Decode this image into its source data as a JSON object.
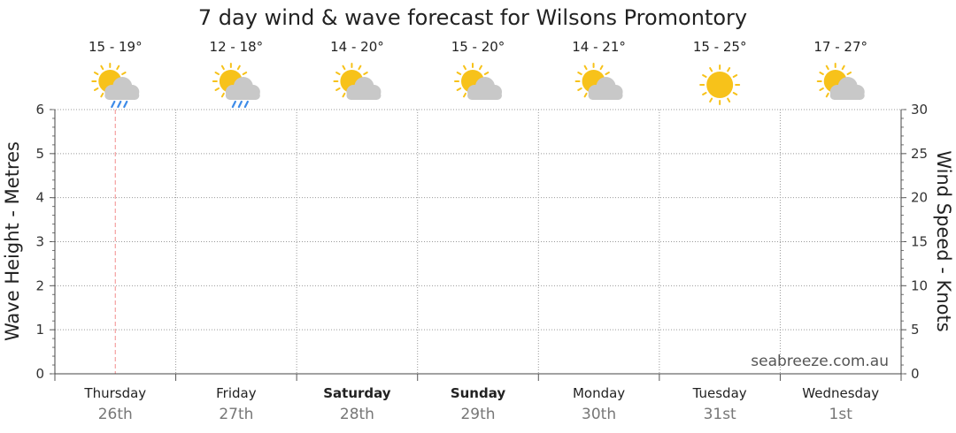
{
  "chart_data": {
    "type": "line",
    "title": "7 day wind & wave forecast for Wilsons Promontory",
    "left_axis": {
      "label": "Wave Height - Metres",
      "range": [
        0,
        6
      ],
      "ticks": [
        "0",
        "1",
        "2",
        "3",
        "4",
        "5",
        "6"
      ]
    },
    "right_axis": {
      "label": "Wind Speed - Knots",
      "range": [
        0,
        30
      ],
      "ticks": [
        "0",
        "5",
        "10",
        "15",
        "20",
        "25",
        "30"
      ]
    },
    "grid": true,
    "current_day_marker": "Thursday",
    "days": [
      {
        "name": "Thursday",
        "date": "26th",
        "temp": "15 - 19°",
        "icon": "sun-cloud-rain-icon",
        "bold": false
      },
      {
        "name": "Friday",
        "date": "27th",
        "temp": "12 - 18°",
        "icon": "sun-cloud-rain-icon",
        "bold": false
      },
      {
        "name": "Saturday",
        "date": "28th",
        "temp": "14 - 20°",
        "icon": "sun-cloud-icon",
        "bold": true
      },
      {
        "name": "Sunday",
        "date": "29th",
        "temp": "15 - 20°",
        "icon": "sun-cloud-icon",
        "bold": true
      },
      {
        "name": "Monday",
        "date": "30th",
        "temp": "14 - 21°",
        "icon": "sun-cloud-icon",
        "bold": false
      },
      {
        "name": "Tuesday",
        "date": "31st",
        "temp": "15 - 25°",
        "icon": "sun-icon",
        "bold": false
      },
      {
        "name": "Wednesday",
        "date": "1st",
        "temp": "17 - 27°",
        "icon": "sun-cloud-icon",
        "bold": false
      }
    ],
    "series": []
  },
  "credit": "seabreeze.com.au",
  "colors": {
    "sun": "#F7C21A",
    "cloud": "#C8C8C8",
    "rain": "#3D8BE8",
    "marker": "#F4A0A0",
    "grid": "#999999"
  }
}
